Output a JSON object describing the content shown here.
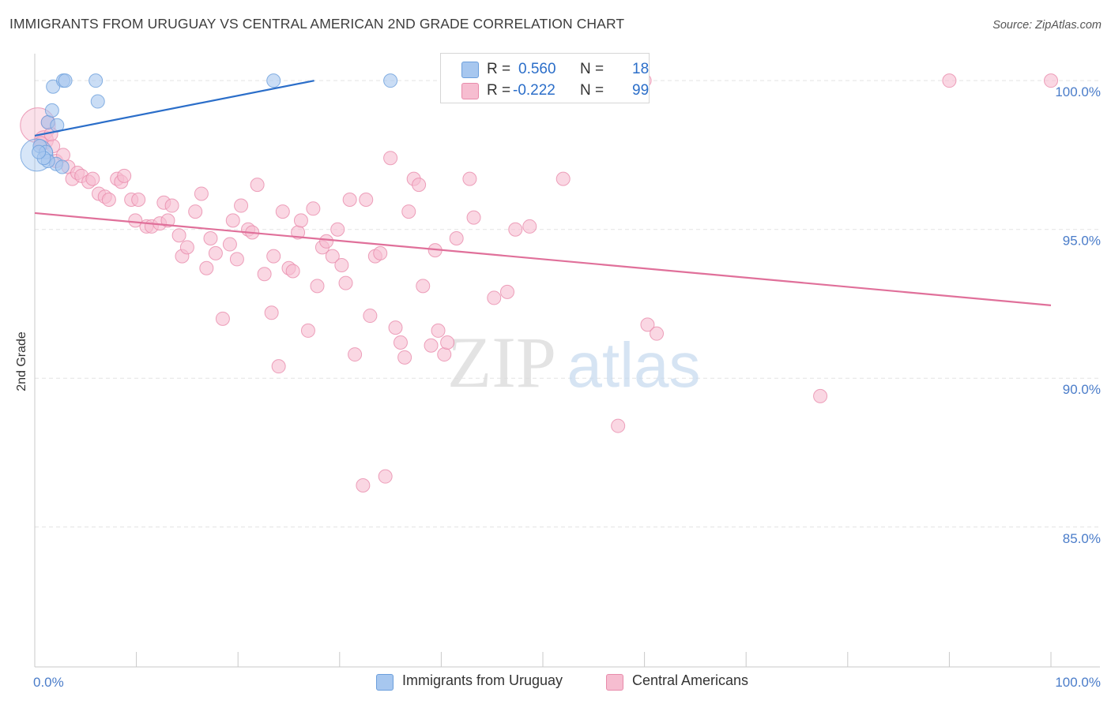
{
  "title": "IMMIGRANTS FROM URUGUAY VS CENTRAL AMERICAN 2ND GRADE CORRELATION CHART",
  "source": "Source: ZipAtlas.com",
  "watermark": {
    "zip": "ZIP",
    "atlas": "atlas"
  },
  "colors": {
    "blue_fill": "#a7c7ef",
    "blue_stroke": "#6c9fdc",
    "blue_line": "#2b6ec9",
    "pink_fill": "#f6bdd0",
    "pink_stroke": "#e88bab",
    "pink_line": "#e0709a",
    "tick_text": "#4a7cc9",
    "grid": "#e3e3e3"
  },
  "legend": {
    "rows": [
      {
        "r_label": "R =",
        "r_value": "0.560",
        "n_label": "N =",
        "n_value": "18",
        "color": "blue"
      },
      {
        "r_label": "R =",
        "r_value": "-0.222",
        "n_label": "N =",
        "n_value": "99",
        "color": "pink"
      }
    ]
  },
  "bottom_legend": [
    "Immigrants from Uruguay",
    "Central Americans"
  ],
  "chart_data": {
    "type": "scatter",
    "xlabel": "",
    "ylabel": "2nd Grade",
    "xlim": [
      0,
      100
    ],
    "ylim": [
      80.3,
      100.8
    ],
    "x_tick_labels": [
      "0.0%",
      "100.0%"
    ],
    "y_ticks": [
      85,
      90,
      95,
      100
    ],
    "y_tick_labels": [
      "85.0%",
      "90.0%",
      "95.0%",
      "100.0%"
    ],
    "grid": true,
    "series": [
      {
        "name": "Immigrants from Uruguay",
        "color": "blue",
        "trend": {
          "x": [
            0,
            27.5
          ],
          "y": [
            98.15,
            100.0
          ]
        },
        "points": [
          [
            0.2,
            97.5,
            2.4
          ],
          [
            0.5,
            97.8,
            1
          ],
          [
            1.1,
            97.6,
            1
          ],
          [
            1.3,
            98.6,
            1
          ],
          [
            1.7,
            99.0,
            1
          ],
          [
            1.8,
            99.8,
            1
          ],
          [
            2.2,
            98.5,
            1
          ],
          [
            2.1,
            97.2,
            1
          ],
          [
            2.7,
            97.1,
            1
          ],
          [
            2.8,
            100.0,
            1
          ],
          [
            3.0,
            100.0,
            1
          ],
          [
            1.3,
            97.3,
            1
          ],
          [
            0.9,
            97.4,
            1
          ],
          [
            6.0,
            100.0,
            1
          ],
          [
            6.2,
            99.3,
            1
          ],
          [
            23.5,
            100.0,
            1
          ],
          [
            35.0,
            100.0,
            1
          ],
          [
            0.4,
            97.6,
            1
          ]
        ]
      },
      {
        "name": "Central Americans",
        "color": "pink",
        "trend": {
          "x": [
            0,
            100
          ],
          "y": [
            95.55,
            92.45
          ]
        },
        "points": [
          [
            0.3,
            98.5,
            2.6
          ],
          [
            0.9,
            98.0,
            1.4
          ],
          [
            1.3,
            98.6,
            1
          ],
          [
            1.8,
            97.8,
            1
          ],
          [
            2.1,
            97.3,
            1
          ],
          [
            2.8,
            97.5,
            1
          ],
          [
            3.3,
            97.1,
            1
          ],
          [
            3.7,
            96.7,
            1
          ],
          [
            4.2,
            96.9,
            1
          ],
          [
            4.6,
            96.8,
            1
          ],
          [
            5.3,
            96.6,
            1
          ],
          [
            5.7,
            96.7,
            1
          ],
          [
            6.3,
            96.2,
            1
          ],
          [
            6.9,
            96.1,
            1
          ],
          [
            7.3,
            96.0,
            1
          ],
          [
            8.1,
            96.7,
            1
          ],
          [
            8.5,
            96.6,
            1
          ],
          [
            8.8,
            96.8,
            1
          ],
          [
            9.5,
            96.0,
            1
          ],
          [
            10.2,
            96.0,
            1
          ],
          [
            9.9,
            95.3,
            1
          ],
          [
            11.0,
            95.1,
            1
          ],
          [
            11.5,
            95.1,
            1
          ],
          [
            12.3,
            95.2,
            1
          ],
          [
            12.7,
            95.9,
            1
          ],
          [
            13.1,
            95.3,
            1
          ],
          [
            13.5,
            95.8,
            1
          ],
          [
            14.2,
            94.8,
            1
          ],
          [
            14.5,
            94.1,
            1
          ],
          [
            15.0,
            94.4,
            1
          ],
          [
            15.8,
            95.6,
            1
          ],
          [
            16.4,
            96.2,
            1
          ],
          [
            16.9,
            93.7,
            1
          ],
          [
            17.3,
            94.7,
            1
          ],
          [
            17.8,
            94.2,
            1
          ],
          [
            18.5,
            92.0,
            1
          ],
          [
            19.2,
            94.5,
            1
          ],
          [
            19.5,
            95.3,
            1
          ],
          [
            19.9,
            94.0,
            1
          ],
          [
            20.3,
            95.8,
            1
          ],
          [
            21.0,
            95.0,
            1
          ],
          [
            21.4,
            94.9,
            1
          ],
          [
            21.9,
            96.5,
            1
          ],
          [
            22.6,
            93.5,
            1
          ],
          [
            23.3,
            92.2,
            1
          ],
          [
            23.5,
            94.1,
            1
          ],
          [
            24.0,
            90.4,
            1
          ],
          [
            24.4,
            95.6,
            1
          ],
          [
            25.0,
            93.7,
            1
          ],
          [
            25.4,
            93.6,
            1
          ],
          [
            25.9,
            94.9,
            1
          ],
          [
            26.2,
            95.3,
            1
          ],
          [
            26.9,
            91.6,
            1
          ],
          [
            27.4,
            95.7,
            1
          ],
          [
            27.8,
            93.1,
            1
          ],
          [
            28.3,
            94.4,
            1
          ],
          [
            28.7,
            94.6,
            1
          ],
          [
            29.3,
            94.1,
            1
          ],
          [
            29.8,
            95.0,
            1
          ],
          [
            30.2,
            93.8,
            1
          ],
          [
            30.6,
            93.2,
            1
          ],
          [
            31.0,
            96.0,
            1
          ],
          [
            31.5,
            90.8,
            1
          ],
          [
            32.3,
            86.4,
            1
          ],
          [
            32.6,
            96.0,
            1
          ],
          [
            33.0,
            92.1,
            1
          ],
          [
            33.5,
            94.1,
            1
          ],
          [
            34.0,
            94.2,
            1
          ],
          [
            34.5,
            86.7,
            1
          ],
          [
            35.0,
            97.4,
            1
          ],
          [
            35.5,
            91.7,
            1
          ],
          [
            36.0,
            91.2,
            1
          ],
          [
            36.4,
            90.7,
            1
          ],
          [
            36.8,
            95.6,
            1
          ],
          [
            37.3,
            96.7,
            1
          ],
          [
            37.8,
            96.5,
            1
          ],
          [
            38.2,
            93.1,
            1
          ],
          [
            39.0,
            91.1,
            1
          ],
          [
            39.4,
            94.3,
            1
          ],
          [
            39.7,
            91.6,
            1
          ],
          [
            40.3,
            90.8,
            1
          ],
          [
            40.6,
            91.2,
            1
          ],
          [
            41.5,
            94.7,
            1
          ],
          [
            42.8,
            96.7,
            1
          ],
          [
            43.2,
            95.4,
            1
          ],
          [
            45.2,
            92.7,
            1
          ],
          [
            46.5,
            92.9,
            1
          ],
          [
            47.3,
            95.0,
            1
          ],
          [
            48.7,
            95.1,
            1
          ],
          [
            52.0,
            96.7,
            1
          ],
          [
            57.4,
            88.4,
            1
          ],
          [
            60.0,
            100.0,
            1
          ],
          [
            60.3,
            91.8,
            1
          ],
          [
            61.2,
            91.5,
            1
          ],
          [
            77.3,
            89.4,
            1
          ],
          [
            90.0,
            100.0,
            1
          ],
          [
            100.0,
            100.0,
            1
          ],
          [
            0.6,
            97.9,
            1
          ],
          [
            1.6,
            98.2,
            1
          ]
        ]
      }
    ]
  }
}
